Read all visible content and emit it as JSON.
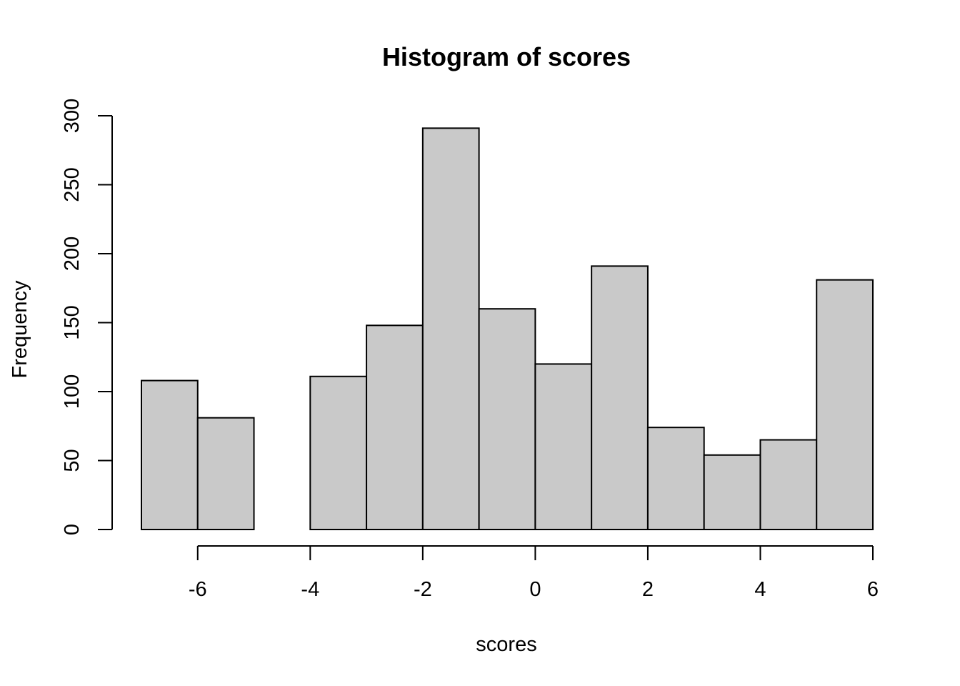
{
  "chart_data": {
    "type": "bar",
    "title": "Histogram of scores",
    "xlabel": "scores",
    "ylabel": "Frequency",
    "bins": [
      {
        "start": -7,
        "end": -6,
        "count": 108
      },
      {
        "start": -6,
        "end": -5,
        "count": 81
      },
      {
        "start": -5,
        "end": -4,
        "count": 0
      },
      {
        "start": -4,
        "end": -3,
        "count": 111
      },
      {
        "start": -3,
        "end": -2,
        "count": 148
      },
      {
        "start": -2,
        "end": -1,
        "count": 291
      },
      {
        "start": -1,
        "end": 0,
        "count": 160
      },
      {
        "start": 0,
        "end": 1,
        "count": 120
      },
      {
        "start": 1,
        "end": 2,
        "count": 191
      },
      {
        "start": 2,
        "end": 3,
        "count": 74
      },
      {
        "start": 3,
        "end": 4,
        "count": 54
      },
      {
        "start": 4,
        "end": 5,
        "count": 65
      },
      {
        "start": 5,
        "end": 6,
        "count": 181
      }
    ],
    "xticks": [
      -6,
      -4,
      -2,
      0,
      2,
      4,
      6
    ],
    "yticks": [
      0,
      50,
      100,
      150,
      200,
      250,
      300
    ],
    "xlim": [
      -7,
      6
    ],
    "ylim": [
      0,
      300
    ],
    "bar_color": "#c9c9c9",
    "grid": false,
    "legend": "none"
  }
}
